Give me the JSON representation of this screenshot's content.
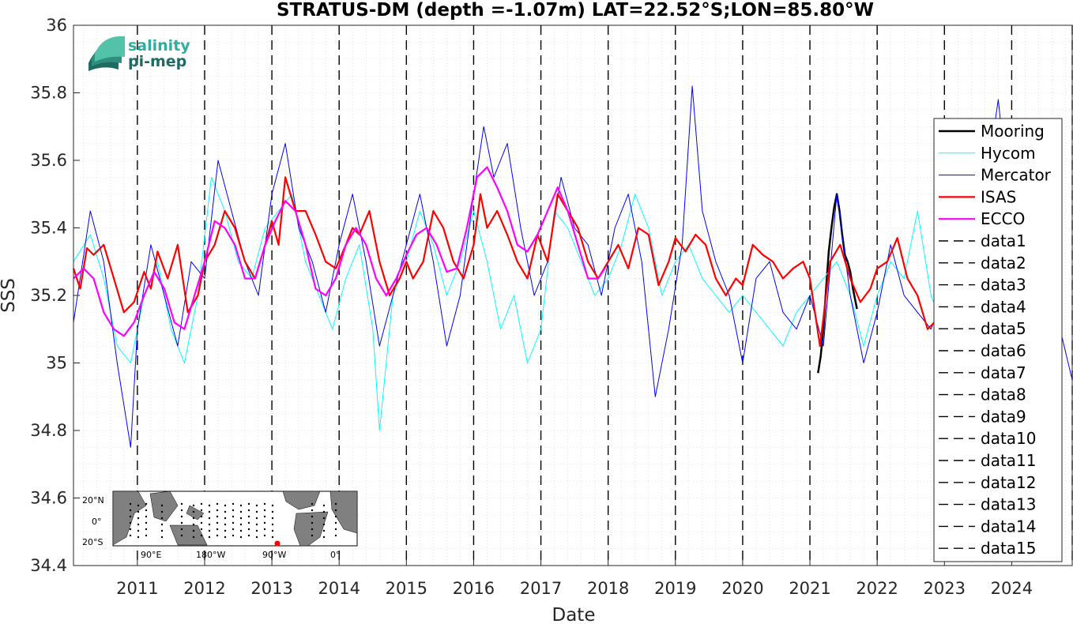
{
  "chart_data": {
    "type": "line",
    "title": "STRATUS-DM (depth =-1.07m) LAT=22.52°S;LON=85.80°W",
    "xlabel": "Date",
    "ylabel": "SSS",
    "xlim": [
      2010.05,
      2024.9
    ],
    "ylim": [
      34.4,
      36.0
    ],
    "yticks": [
      34.4,
      34.6,
      34.8,
      35,
      35.2,
      35.4,
      35.6,
      35.8,
      36
    ],
    "ytick_labels": [
      "34.4",
      "34.6",
      "34.8",
      "35",
      "35.2",
      "35.4",
      "35.6",
      "35.8",
      "36"
    ],
    "xticks": [
      2011,
      2012,
      2013,
      2014,
      2015,
      2016,
      2017,
      2018,
      2019,
      2020,
      2021,
      2022,
      2023,
      2024
    ],
    "xtick_labels": [
      "2011",
      "2012",
      "2013",
      "2014",
      "2015",
      "2016",
      "2017",
      "2018",
      "2019",
      "2020",
      "2021",
      "2022",
      "2023",
      "2024"
    ],
    "grid": true,
    "legend_position": "right",
    "vertical_markers": [
      2011,
      2012,
      2013,
      2014,
      2015,
      2016,
      2017,
      2018,
      2019,
      2020,
      2021,
      2022,
      2023,
      2024,
      2024.9
    ],
    "series": [
      {
        "name": "Mooring",
        "color": "#000000",
        "width": 2.5,
        "style": "solid",
        "x": [
          2021.12,
          2021.16,
          2021.2,
          2021.24,
          2021.28,
          2021.32,
          2021.36,
          2021.4,
          2021.44,
          2021.48,
          2021.52,
          2021.56,
          2021.6,
          2021.64,
          2021.68,
          2021.7
        ],
        "y": [
          34.97,
          35.02,
          35.1,
          35.22,
          35.33,
          35.4,
          35.46,
          35.5,
          35.45,
          35.38,
          35.32,
          35.3,
          35.27,
          35.22,
          35.18,
          35.16
        ]
      },
      {
        "name": "Hycom",
        "color": "#00ffff",
        "width": 1,
        "style": "solid",
        "x": [
          2010.05,
          2010.3,
          2010.5,
          2010.7,
          2010.9,
          2011.1,
          2011.3,
          2011.5,
          2011.7,
          2011.9,
          2012.1,
          2012.3,
          2012.5,
          2012.7,
          2012.9,
          2013.1,
          2013.3,
          2013.5,
          2013.7,
          2013.9,
          2014.1,
          2014.3,
          2014.5,
          2014.6,
          2014.8,
          2015.0,
          2015.2,
          2015.4,
          2015.6,
          2015.8,
          2016.0,
          2016.2,
          2016.4,
          2016.6,
          2016.8,
          2017.0,
          2017.2,
          2017.4,
          2017.6,
          2017.8,
          2018.0,
          2018.2,
          2018.4,
          2018.6,
          2018.8,
          2019.0,
          2019.2,
          2019.4,
          2019.6,
          2019.8,
          2020.0,
          2020.2,
          2020.4,
          2020.6,
          2020.8,
          2021.0,
          2021.2,
          2021.4,
          2021.6,
          2021.8,
          2022.0,
          2022.2,
          2022.4,
          2022.6,
          2022.8,
          2023.0
        ],
        "y": [
          35.3,
          35.38,
          35.25,
          35.05,
          35.0,
          35.2,
          35.3,
          35.1,
          35.0,
          35.2,
          35.55,
          35.45,
          35.3,
          35.25,
          35.4,
          35.45,
          35.5,
          35.3,
          35.2,
          35.1,
          35.25,
          35.35,
          35.1,
          34.8,
          35.2,
          35.3,
          35.45,
          35.35,
          35.2,
          35.3,
          35.45,
          35.3,
          35.1,
          35.2,
          35.0,
          35.1,
          35.45,
          35.4,
          35.3,
          35.2,
          35.25,
          35.35,
          35.5,
          35.4,
          35.2,
          35.3,
          35.35,
          35.25,
          35.2,
          35.15,
          35.2,
          35.15,
          35.1,
          35.05,
          35.15,
          35.2,
          35.25,
          35.3,
          35.2,
          35.05,
          35.2,
          35.3,
          35.25,
          35.45,
          35.2,
          35.1
        ]
      },
      {
        "name": "Mercator",
        "color": "#0000ff",
        "width": 1,
        "style": "solid",
        "x": [
          2010.05,
          2010.3,
          2010.5,
          2010.7,
          2010.9,
          2011.0,
          2011.2,
          2011.4,
          2011.6,
          2011.8,
          2012.0,
          2012.2,
          2012.4,
          2012.6,
          2012.8,
          2013.0,
          2013.2,
          2013.4,
          2013.6,
          2013.8,
          2014.0,
          2014.2,
          2014.4,
          2014.6,
          2014.8,
          2015.0,
          2015.2,
          2015.4,
          2015.6,
          2015.8,
          2016.0,
          2016.15,
          2016.3,
          2016.5,
          2016.7,
          2016.9,
          2017.1,
          2017.3,
          2017.5,
          2017.7,
          2017.9,
          2018.1,
          2018.3,
          2018.5,
          2018.7,
          2018.9,
          2019.1,
          2019.25,
          2019.4,
          2019.6,
          2019.8,
          2020.0,
          2020.2,
          2020.4,
          2020.6,
          2020.8,
          2021.0,
          2021.2,
          2021.4,
          2021.6,
          2021.8,
          2022.0,
          2022.2,
          2022.4,
          2022.6,
          2022.8,
          2023.0,
          2023.3,
          2023.6,
          2023.8,
          2024.0,
          2024.3,
          2024.6,
          2024.9
        ],
        "y": [
          35.12,
          35.45,
          35.3,
          35.0,
          34.75,
          35.1,
          35.35,
          35.2,
          35.05,
          35.3,
          35.25,
          35.6,
          35.45,
          35.3,
          35.2,
          35.5,
          35.65,
          35.4,
          35.3,
          35.15,
          35.35,
          35.5,
          35.3,
          35.05,
          35.2,
          35.35,
          35.5,
          35.3,
          35.05,
          35.2,
          35.5,
          35.7,
          35.55,
          35.65,
          35.4,
          35.2,
          35.3,
          35.55,
          35.4,
          35.35,
          35.2,
          35.4,
          35.5,
          35.3,
          34.9,
          35.1,
          35.35,
          35.82,
          35.45,
          35.3,
          35.2,
          35.0,
          35.25,
          35.3,
          35.15,
          35.1,
          35.2,
          35.05,
          35.5,
          35.2,
          35.0,
          35.15,
          35.35,
          35.2,
          35.15,
          35.1,
          35.2,
          35.3,
          35.5,
          35.78,
          35.4,
          35.3,
          35.2,
          34.95
        ]
      },
      {
        "name": "ISAS",
        "color": "#ff0000",
        "width": 2.2,
        "style": "solid",
        "x": [
          2010.05,
          2010.15,
          2010.25,
          2010.35,
          2010.5,
          2010.65,
          2010.8,
          2010.95,
          2011.1,
          2011.2,
          2011.3,
          2011.45,
          2011.6,
          2011.75,
          2011.9,
          2012.0,
          2012.15,
          2012.3,
          2012.45,
          2012.6,
          2012.75,
          2012.9,
          2013.0,
          2013.1,
          2013.2,
          2013.35,
          2013.5,
          2013.65,
          2013.8,
          2013.95,
          2014.1,
          2014.2,
          2014.3,
          2014.45,
          2014.6,
          2014.75,
          2014.9,
          2015.0,
          2015.1,
          2015.25,
          2015.4,
          2015.55,
          2015.7,
          2015.85,
          2016.0,
          2016.1,
          2016.2,
          2016.35,
          2016.5,
          2016.65,
          2016.8,
          2016.95,
          2017.1,
          2017.25,
          2017.4,
          2017.55,
          2017.7,
          2017.85,
          2018.0,
          2018.15,
          2018.3,
          2018.45,
          2018.6,
          2018.75,
          2018.9,
          2019.0,
          2019.15,
          2019.3,
          2019.45,
          2019.6,
          2019.75,
          2019.9,
          2020.0,
          2020.15,
          2020.3,
          2020.45,
          2020.6,
          2020.75,
          2020.9,
          2021.0,
          2021.15,
          2021.3,
          2021.45,
          2021.6,
          2021.75,
          2021.9,
          2022.0,
          2022.15,
          2022.3,
          2022.45,
          2022.6,
          2022.75,
          2022.85
        ],
        "y": [
          35.28,
          35.22,
          35.34,
          35.32,
          35.35,
          35.25,
          35.15,
          35.18,
          35.27,
          35.22,
          35.33,
          35.25,
          35.35,
          35.15,
          35.2,
          35.3,
          35.35,
          35.45,
          35.4,
          35.3,
          35.25,
          35.35,
          35.42,
          35.35,
          35.55,
          35.45,
          35.45,
          35.38,
          35.3,
          35.28,
          35.35,
          35.4,
          35.38,
          35.45,
          35.3,
          35.2,
          35.25,
          35.3,
          35.25,
          35.3,
          35.45,
          35.4,
          35.3,
          35.25,
          35.35,
          35.5,
          35.4,
          35.45,
          35.38,
          35.3,
          35.25,
          35.38,
          35.3,
          35.5,
          35.45,
          35.4,
          35.3,
          35.25,
          35.3,
          35.35,
          35.28,
          35.4,
          35.38,
          35.23,
          35.3,
          35.37,
          35.33,
          35.38,
          35.35,
          35.25,
          35.2,
          35.25,
          35.23,
          35.35,
          35.32,
          35.3,
          35.25,
          35.28,
          35.3,
          35.25,
          35.05,
          35.3,
          35.35,
          35.25,
          35.18,
          35.22,
          35.28,
          35.3,
          35.37,
          35.25,
          35.2,
          35.1,
          35.12
        ]
      },
      {
        "name": "ECCO",
        "color": "#ff00ff",
        "width": 2.2,
        "style": "solid",
        "x": [
          2010.05,
          2010.2,
          2010.35,
          2010.5,
          2010.65,
          2010.8,
          2010.95,
          2011.1,
          2011.25,
          2011.4,
          2011.55,
          2011.7,
          2011.85,
          2012.0,
          2012.15,
          2012.3,
          2012.45,
          2012.6,
          2012.75,
          2012.9,
          2013.05,
          2013.2,
          2013.35,
          2013.5,
          2013.65,
          2013.8,
          2013.95,
          2014.1,
          2014.25,
          2014.4,
          2014.55,
          2014.7,
          2014.85,
          2015.0,
          2015.15,
          2015.3,
          2015.45,
          2015.6,
          2015.75,
          2015.9,
          2016.05,
          2016.2,
          2016.35,
          2016.5,
          2016.65,
          2016.8,
          2016.95,
          2017.1,
          2017.25,
          2017.4,
          2017.55,
          2017.7,
          2017.85,
          2017.95
        ],
        "y": [
          35.25,
          35.28,
          35.25,
          35.15,
          35.1,
          35.08,
          35.12,
          35.2,
          35.27,
          35.22,
          35.12,
          35.1,
          35.2,
          35.3,
          35.42,
          35.4,
          35.35,
          35.25,
          35.25,
          35.35,
          35.42,
          35.48,
          35.45,
          35.35,
          35.22,
          35.2,
          35.25,
          35.35,
          35.4,
          35.35,
          35.25,
          35.2,
          35.25,
          35.32,
          35.38,
          35.4,
          35.35,
          35.27,
          35.28,
          35.4,
          35.55,
          35.58,
          35.52,
          35.45,
          35.35,
          35.33,
          35.38,
          35.45,
          35.52,
          35.45,
          35.35,
          35.25,
          35.25,
          35.28
        ]
      }
    ],
    "legend_entries": [
      "Mooring",
      "Hycom",
      "Mercator",
      "ISAS",
      "ECCO",
      "data1",
      "data2",
      "data3",
      "data4",
      "data5",
      "data6",
      "data7",
      "data8",
      "data9",
      "data10",
      "data11",
      "data12",
      "data13",
      "data14",
      "data15"
    ]
  },
  "logo": {
    "line1": "salinity",
    "line2": "pi-mep"
  },
  "inset_map": {
    "lat_labels": [
      "20°N",
      "0°",
      "20°S"
    ],
    "lon_labels": [
      "90°E",
      "180°W",
      "90°W",
      "0°"
    ],
    "marker_color": "#ff0000"
  }
}
